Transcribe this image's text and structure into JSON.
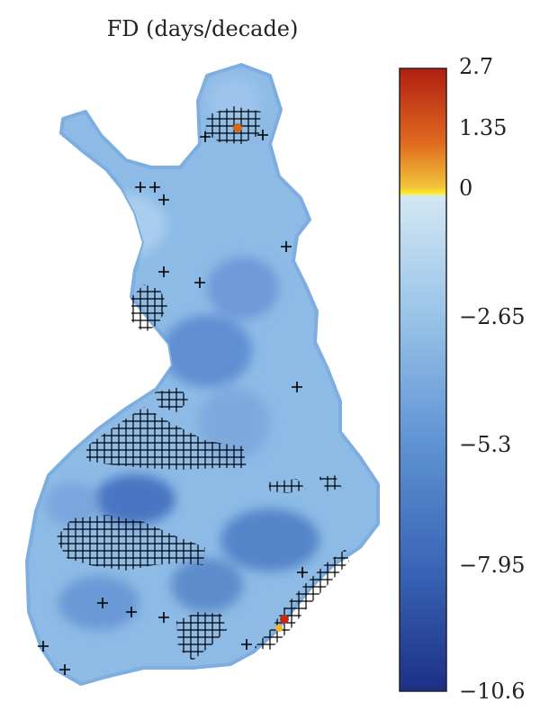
{
  "title": "FD (days/decade)",
  "variable": "FD",
  "unit": "days/decade",
  "colorbar": {
    "min": -10.6,
    "max": 2.7,
    "ticks": [
      {
        "value": 2.7,
        "label": "2.7"
      },
      {
        "value": 1.35,
        "label": "1.35"
      },
      {
        "value": 0,
        "label": "0"
      },
      {
        "value": -2.65,
        "label": "−2.65"
      },
      {
        "value": -5.3,
        "label": "−5.3"
      },
      {
        "value": -7.95,
        "label": "−7.95"
      },
      {
        "value": -10.6,
        "label": "−10.6"
      }
    ],
    "colors": {
      "low": "#1f3690",
      "mid_low": "#4a7ec9",
      "near_zero": "#cfe4f4",
      "zero": "#fff23a",
      "high": "#c62815"
    }
  },
  "markers": {
    "symbol": "+",
    "color": "#000000"
  }
}
